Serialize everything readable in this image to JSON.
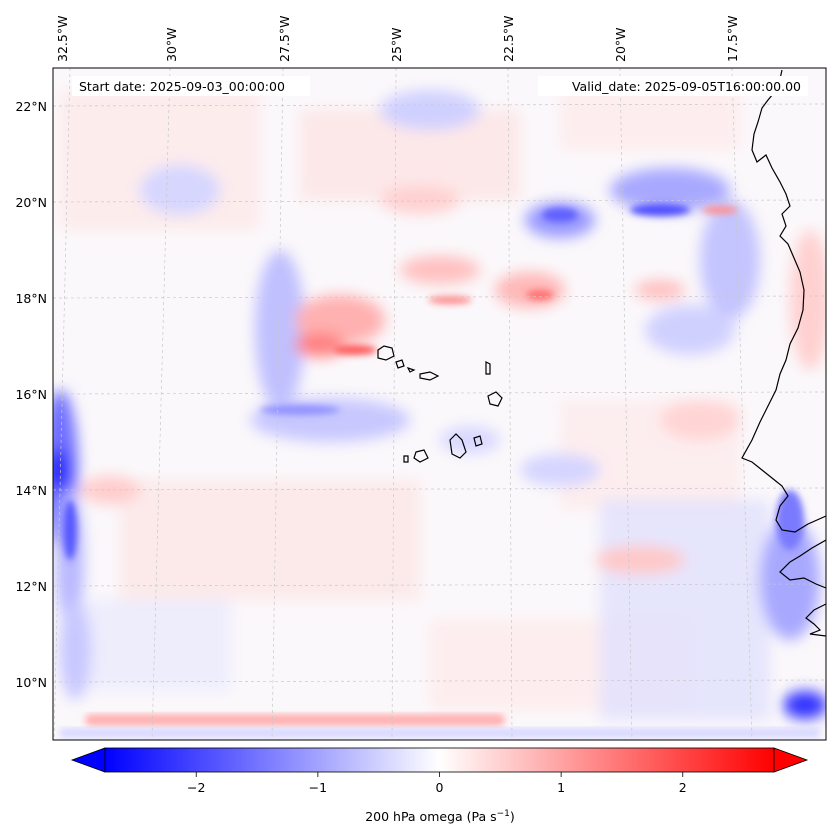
{
  "map": {
    "start_label": "Start date: 2025-09-03_00:00:00",
    "valid_label": "Valid_date: 2025-09-05T16:00:00.00",
    "lon_labels": [
      "32.5°W",
      "30°W",
      "27.5°W",
      "25°W",
      "22.5°W",
      "20°W",
      "17.5°W"
    ],
    "lat_labels": [
      "22°N",
      "20°N",
      "18°N",
      "16°N",
      "14°N",
      "12°N",
      "10°N"
    ],
    "colors": {
      "negative": "#0000ff",
      "neutral": "#ffffff",
      "positive": "#ff0000",
      "coast": "#000000"
    }
  },
  "colorbar": {
    "label": "200 hPa omega (Pa s",
    "label_exp": "−1",
    "label_close": ")",
    "min": -2.75,
    "max": 2.75,
    "ticks": [
      {
        "value": -2,
        "text": "−2"
      },
      {
        "value": -1,
        "text": "−1"
      },
      {
        "value": 0,
        "text": "0"
      },
      {
        "value": 1,
        "text": "1"
      },
      {
        "value": 2,
        "text": "2"
      }
    ]
  }
}
